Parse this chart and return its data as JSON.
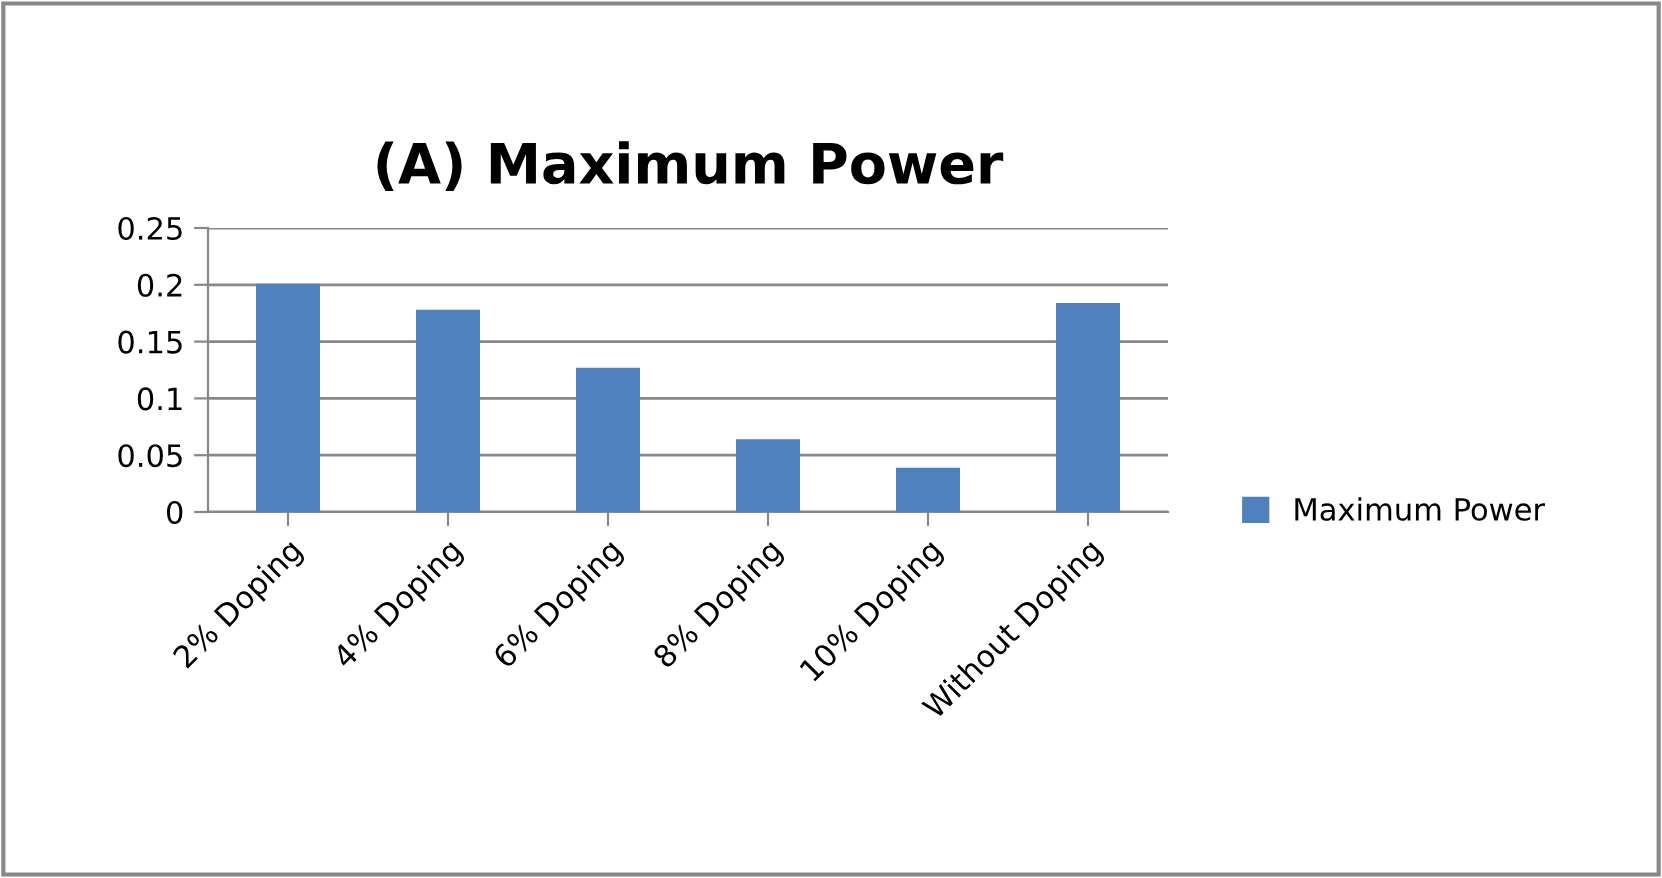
{
  "chart_data": {
    "type": "bar",
    "title": "(A) Maximum Power",
    "categories": [
      "2% Doping",
      "4% Doping",
      "6% Doping",
      "8% Doping",
      "10% Doping",
      "Without Doping"
    ],
    "series": [
      {
        "name": "Maximum Power",
        "color": "#4f81bd",
        "values": [
          0.201,
          0.178,
          0.127,
          0.064,
          0.039,
          0.184
        ]
      }
    ],
    "ylim": [
      0,
      0.25
    ],
    "yticks": [
      0,
      {
        "value": 0.05,
        "label": "0.05"
      },
      {
        "value": 0.1,
        "label": "0.1"
      },
      {
        "value": 0.15,
        "label": "0.15"
      },
      {
        "value": 0.2,
        "label": "0.2"
      },
      {
        "value": 0.25,
        "label": "0.25"
      }
    ],
    "grid": "y",
    "legend": "right"
  }
}
